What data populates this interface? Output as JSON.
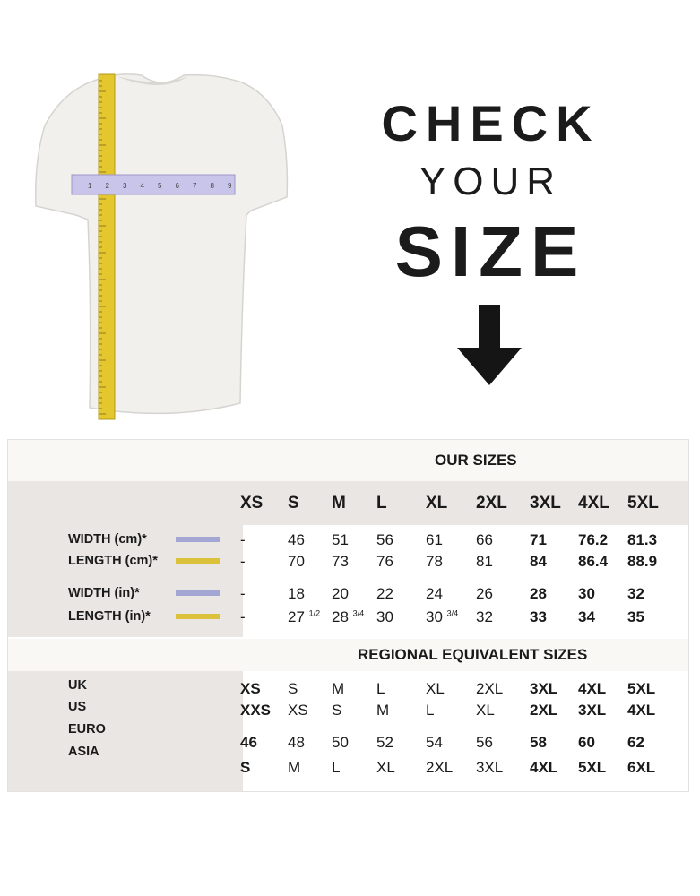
{
  "hero": {
    "line1": "CHECK",
    "line2": "YOUR",
    "line3": "SIZE"
  },
  "illustration": {
    "ruler_numbers": [
      "1",
      "2",
      "3",
      "4",
      "5",
      "6",
      "7",
      "8",
      "9"
    ]
  },
  "colors": {
    "width_swatch": "#a3a6d2",
    "length_swatch": "#dcc13a",
    "header_band": "#e9e6e3"
  },
  "our_sizes": {
    "title": "OUR SIZES",
    "columns": [
      "XS",
      "S",
      "M",
      "L",
      "XL",
      "2XL",
      "3XL",
      "4XL",
      "5XL"
    ],
    "rows": [
      {
        "label": "WIDTH (cm)*",
        "swatch": "width",
        "values": [
          {
            "v": "-"
          },
          {
            "v": "46"
          },
          {
            "v": "51"
          },
          {
            "v": "56"
          },
          {
            "v": "61"
          },
          {
            "v": "66"
          },
          {
            "v": "71"
          },
          {
            "v": "76.2"
          },
          {
            "v": "81.3"
          }
        ]
      },
      {
        "label": "LENGTH (cm)*",
        "swatch": "length",
        "values": [
          {
            "v": "-"
          },
          {
            "v": "70"
          },
          {
            "v": "73"
          },
          {
            "v": "76"
          },
          {
            "v": "78"
          },
          {
            "v": "81"
          },
          {
            "v": "84"
          },
          {
            "v": "86.4"
          },
          {
            "v": "88.9"
          }
        ]
      },
      {
        "label": "WIDTH (in)*",
        "swatch": "width",
        "values": [
          {
            "v": "-"
          },
          {
            "v": "18"
          },
          {
            "v": "20"
          },
          {
            "v": "22"
          },
          {
            "v": "24"
          },
          {
            "v": "26"
          },
          {
            "v": "28"
          },
          {
            "v": "30"
          },
          {
            "v": "32"
          }
        ]
      },
      {
        "label": "LENGTH (in)*",
        "swatch": "length",
        "values": [
          {
            "v": "-"
          },
          {
            "v": "27",
            "f": "1/2"
          },
          {
            "v": "28",
            "f": "3/4"
          },
          {
            "v": "30"
          },
          {
            "v": "30",
            "f": "3/4"
          },
          {
            "v": "32"
          },
          {
            "v": "33"
          },
          {
            "v": "34"
          },
          {
            "v": "35"
          }
        ]
      }
    ]
  },
  "regional": {
    "title": "REGIONAL EQUIVALENT SIZES",
    "labels": [
      "UK",
      "US",
      "EURO",
      "ASIA"
    ],
    "rows": [
      [
        "XS",
        "S",
        "M",
        "L",
        "XL",
        "2XL",
        "3XL",
        "4XL",
        "5XL"
      ],
      [
        "XXS",
        "XS",
        "S",
        "M",
        "L",
        "XL",
        "2XL",
        "3XL",
        "4XL"
      ],
      [
        "46",
        "48",
        "50",
        "52",
        "54",
        "56",
        "58",
        "60",
        "62"
      ],
      [
        "S",
        "M",
        "L",
        "XL",
        "2XL",
        "3XL",
        "4XL",
        "5XL",
        "6XL"
      ]
    ]
  }
}
